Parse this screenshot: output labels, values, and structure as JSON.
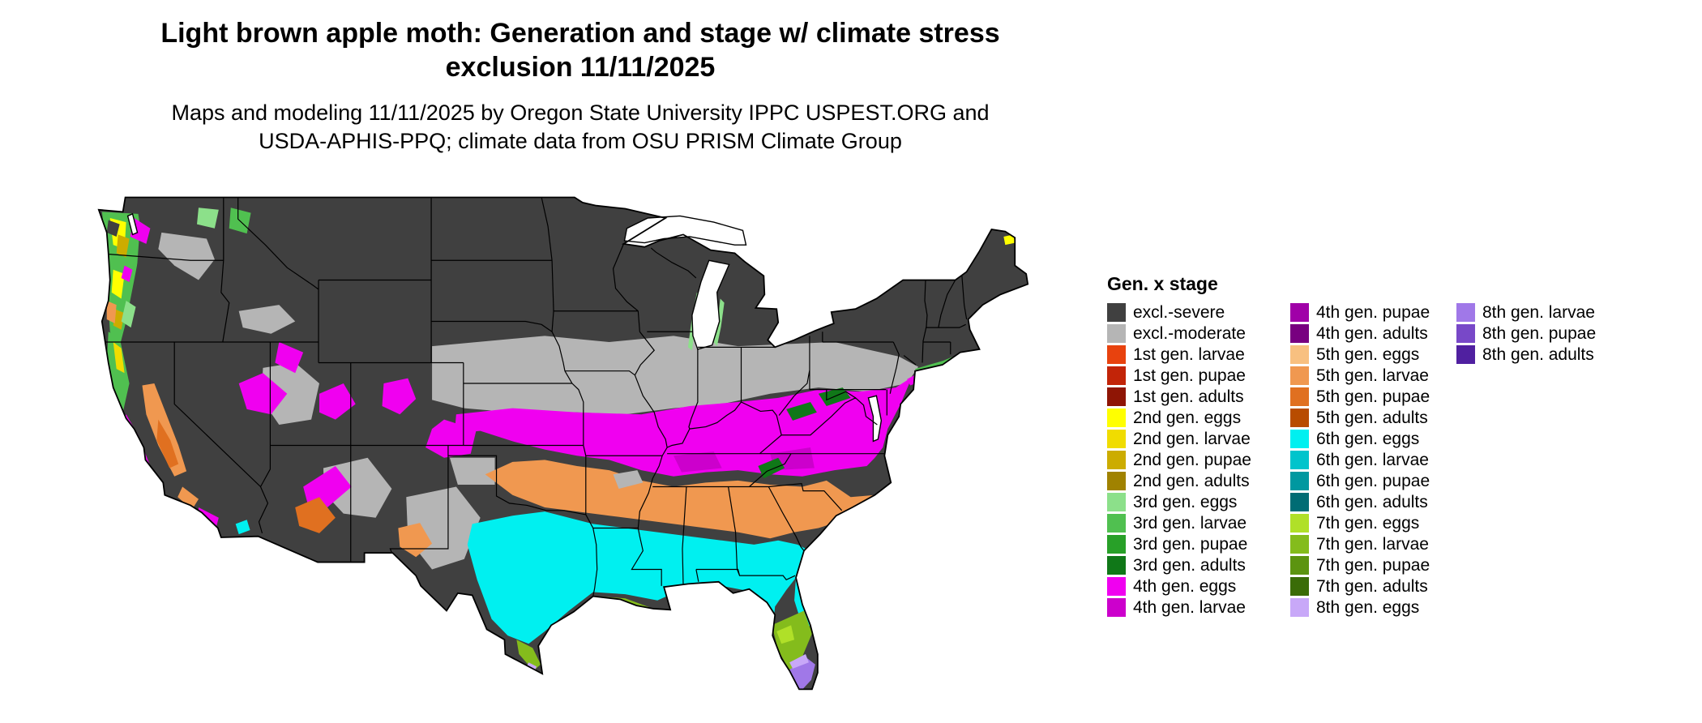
{
  "title": {
    "line1": "Light brown apple moth: Generation and stage w/ climate stress",
    "line2": "exclusion 11/11/2025"
  },
  "subtitle": {
    "line1": "Maps and modeling 11/11/2025 by Oregon State University IPPC USPEST.ORG and",
    "line2": "USDA-APHIS-PPQ; climate data from OSU PRISM Climate Group"
  },
  "legend": {
    "title": "Gen. x stage",
    "columns": [
      {
        "items": [
          {
            "label": "excl.-severe",
            "color": "#404040"
          },
          {
            "label": "excl.-moderate",
            "color": "#b5b5b5"
          },
          {
            "label": "1st gen. larvae",
            "color": "#e8420e"
          },
          {
            "label": "1st gen. pupae",
            "color": "#c22408"
          },
          {
            "label": "1st gen. adults",
            "color": "#8f1505"
          },
          {
            "label": "2nd gen. eggs",
            "color": "#ffff00"
          },
          {
            "label": "2nd gen. larvae",
            "color": "#f0dc00"
          },
          {
            "label": "2nd gen. pupae",
            "color": "#ccac00"
          },
          {
            "label": "2nd gen. adults",
            "color": "#a08200"
          },
          {
            "label": "3rd gen. eggs",
            "color": "#8ce08a"
          },
          {
            "label": "3rd gen. larvae",
            "color": "#50c050"
          },
          {
            "label": "3rd gen. pupae",
            "color": "#28a028"
          },
          {
            "label": "3rd gen. adults",
            "color": "#107818"
          },
          {
            "label": "4th gen. eggs",
            "color": "#f000f0"
          },
          {
            "label": "4th gen. larvae",
            "color": "#cc00cc"
          }
        ]
      },
      {
        "items": [
          {
            "label": "4th gen. pupae",
            "color": "#a000a8"
          },
          {
            "label": "4th gen. adults",
            "color": "#780080"
          },
          {
            "label": "5th gen. eggs",
            "color": "#f8c080"
          },
          {
            "label": "5th gen. larvae",
            "color": "#f09850"
          },
          {
            "label": "5th gen. pupae",
            "color": "#e07020"
          },
          {
            "label": "5th gen. adults",
            "color": "#b84c00"
          },
          {
            "label": "6th gen. eggs",
            "color": "#00f0f0"
          },
          {
            "label": "6th gen. larvae",
            "color": "#00c4cc"
          },
          {
            "label": "6th gen. pupae",
            "color": "#0098a0"
          },
          {
            "label": "6th gen. adults",
            "color": "#006c74"
          },
          {
            "label": "7th gen. eggs",
            "color": "#b0e028"
          },
          {
            "label": "7th gen. larvae",
            "color": "#84bc1c"
          },
          {
            "label": "7th gen. pupae",
            "color": "#5c9410"
          },
          {
            "label": "7th gen. adults",
            "color": "#3a6c08"
          },
          {
            "label": "8th gen. eggs",
            "color": "#c8a8f8"
          }
        ]
      },
      {
        "items": [
          {
            "label": "8th gen. larvae",
            "color": "#a078e8"
          },
          {
            "label": "8th gen. pupae",
            "color": "#7848c8"
          },
          {
            "label": "8th gen. adults",
            "color": "#5020a0"
          }
        ]
      }
    ]
  },
  "map": {
    "border_color": "#000000",
    "water_color": "#ffffff",
    "palette": {
      "exclSevere": "#404040",
      "exclModerate": "#b5b5b5",
      "g2eggs": "#ffff00",
      "g2larvae": "#f0dc00",
      "g2pupae": "#ccac00",
      "g3eggs": "#8ce08a",
      "g3larvae": "#50c050",
      "g3adults": "#107818",
      "g4eggs": "#f000f0",
      "g4larvae": "#cc00cc",
      "g5larvae": "#f09850",
      "g5pupae": "#e07020",
      "g6eggs": "#00f0f0",
      "g7eggs": "#b0e028",
      "g7larvae": "#84bc1c",
      "g8eggs": "#c8a8f8",
      "g8larvae": "#a078e8",
      "g8pupae": "#7848c8"
    }
  }
}
